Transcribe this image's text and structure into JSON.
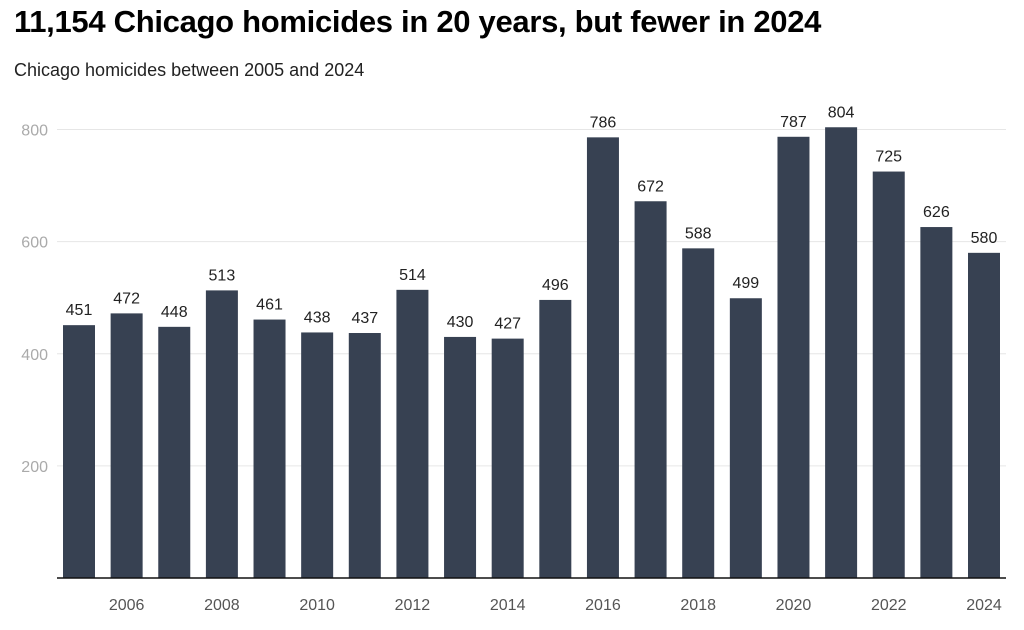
{
  "chart_data": {
    "type": "bar",
    "title": "11,154 Chicago homicides in 20 years, but fewer in 2024",
    "subtitle": "Chicago homicides between 2005 and 2024",
    "xlabel": "",
    "ylabel": "",
    "categories": [
      "2005",
      "2006",
      "2007",
      "2008",
      "2009",
      "2010",
      "2011",
      "2012",
      "2013",
      "2014",
      "2015",
      "2016",
      "2017",
      "2018",
      "2019",
      "2020",
      "2021",
      "2022",
      "2023",
      "2024"
    ],
    "values": [
      451,
      472,
      448,
      513,
      461,
      438,
      437,
      514,
      430,
      427,
      496,
      786,
      672,
      588,
      499,
      787,
      804,
      725,
      626,
      580
    ],
    "x_tick_labels": [
      "2006",
      "2008",
      "2010",
      "2012",
      "2014",
      "2016",
      "2018",
      "2020",
      "2022",
      "2024"
    ],
    "y_ticks": [
      200,
      400,
      600,
      800
    ],
    "ylim": [
      0,
      800
    ],
    "grid": true,
    "data_labels": true,
    "bar_color": "#374152"
  }
}
